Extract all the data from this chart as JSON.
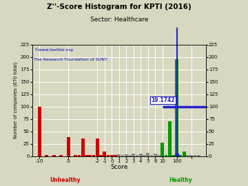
{
  "title": "Z''-Score Histogram for KPTI (2016)",
  "subtitle": "Sector: Healthcare",
  "xlabel": "Score",
  "ylabel": "Number of companies (670 total)",
  "watermark1": "©www.textbiz.org",
  "watermark2": "The Research Foundation of SUNY",
  "kpti_label": "19.1742",
  "bg_color": "#d8d8c0",
  "grid_color": "#ffffff",
  "bar_centers": [
    -11,
    -10,
    -9,
    -8,
    -7,
    -6,
    -5.5,
    -5,
    -4.5,
    -4,
    -3.5,
    -3,
    -2.5,
    -2,
    -1.5,
    -1,
    -0.5,
    0,
    0.5,
    1,
    1.5,
    2,
    2.5,
    3,
    3.5,
    4,
    4.5,
    5,
    5.5,
    6,
    6.5,
    7,
    7.5,
    8,
    8.5,
    9,
    9.5,
    10,
    10.5,
    11
  ],
  "bar_heights": [
    100,
    3,
    3,
    3,
    38,
    3,
    2,
    36,
    2,
    2,
    2,
    36,
    2,
    10,
    2,
    3,
    2,
    4,
    2,
    4,
    2,
    5,
    2,
    5,
    2,
    6,
    2,
    5,
    2,
    28,
    2,
    70,
    2,
    195,
    2,
    10,
    2,
    3,
    2,
    3
  ],
  "bar_colors": [
    "#cc0000",
    "#cc0000",
    "#cc0000",
    "#cc0000",
    "#cc0000",
    "#cc0000",
    "#cc0000",
    "#cc0000",
    "#cc0000",
    "#cc0000",
    "#cc0000",
    "#cc0000",
    "#cc0000",
    "#cc0000",
    "#cc0000",
    "#cc0000",
    "#cc0000",
    "#888888",
    "#888888",
    "#888888",
    "#888888",
    "#888888",
    "#888888",
    "#888888",
    "#888888",
    "#888888",
    "#888888",
    "#888888",
    "#888888",
    "#009900",
    "#009900",
    "#009900",
    "#009900",
    "#009900",
    "#009900",
    "#009900",
    "#888888",
    "#888888",
    "#888888",
    "#888888"
  ],
  "xlim": [
    -12,
    12
  ],
  "ylim": [
    0,
    225
  ],
  "ytick_vals": [
    0,
    25,
    50,
    75,
    100,
    125,
    150,
    175,
    200,
    225
  ],
  "xtick_pos": [
    -11,
    -7,
    -3,
    -2,
    -1.5,
    -1,
    0,
    1,
    2,
    3,
    4,
    5,
    6,
    7,
    8,
    9,
    10
  ],
  "xtick_labels": [
    "-10",
    "-5",
    "-2",
    "-1",
    "",
    "0",
    "1",
    "2",
    "3",
    "4",
    "5",
    "6",
    "",
    "10",
    "100",
    "",
    ""
  ],
  "vline_x": 8,
  "hline_y": 100,
  "hline_xmin": 6,
  "hline_xmax": 12
}
